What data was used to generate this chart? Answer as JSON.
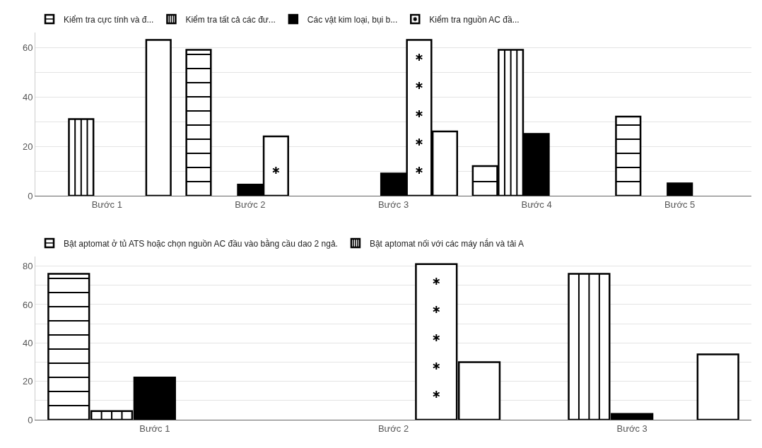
{
  "chart_data": [
    {
      "type": "bar",
      "categories": [
        "Bước 1",
        "Bước 2",
        "Bước 3",
        "Bước 4",
        "Bước 5"
      ],
      "series": [
        {
          "name": "Kiểm tra cực tính và đ...",
          "color": "#ffffff",
          "values": [
            null,
            59,
            null,
            12,
            32
          ]
        },
        {
          "name": "Kiểm tra tất cả các đư...",
          "color": "#ffffff",
          "values": [
            31,
            null,
            null,
            59,
            null
          ]
        },
        {
          "name": "Các vật kim loại, bụi b...",
          "color": "#000000",
          "values": [
            null,
            4.5,
            9,
            25,
            5
          ]
        },
        {
          "name": "Kiểm tra nguồn AC đầ...",
          "color": "#ffffff",
          "values": [
            null,
            24,
            63,
            null,
            null
          ]
        },
        {
          "color": "#ffffff",
          "values": [
            63,
            null,
            26,
            null,
            null
          ]
        }
      ],
      "ylim": [
        0,
        66
      ],
      "yticks": [
        0,
        {
          "value": 10,
          "label": null
        },
        20,
        {
          "value": 30,
          "label": null
        },
        40,
        {
          "value": 50,
          "label": null
        },
        60
      ],
      "grid": "y",
      "legend": "top"
    },
    {
      "type": "bar",
      "categories": [
        "Bước 1",
        "Bước 2",
        "Bước 3"
      ],
      "series": [
        {
          "name": "Bật aptomat ở tủ ATS hoặc chọn nguồn AC đầu vào bằng cầu dao 2 ngả.",
          "color": "#ffffff",
          "values": [
            76,
            null,
            null
          ]
        },
        {
          "name": "Bật aptomat nối với các máy nắn và tải A",
          "color": "#ffffff",
          "values": [
            4.5,
            null,
            76
          ]
        },
        {
          "color": "#000000",
          "values": [
            22,
            null,
            3
          ]
        },
        {
          "color": "#ffffff",
          "values": [
            null,
            81,
            null
          ]
        },
        {
          "color": "#ffffff",
          "values": [
            null,
            30,
            34
          ]
        }
      ],
      "ylim": [
        0,
        85
      ],
      "yticks": [
        0,
        {
          "value": 10,
          "label": null
        },
        20,
        {
          "value": 30,
          "label": null
        },
        40,
        {
          "value": 50,
          "label": null
        },
        60,
        {
          "value": 70,
          "label": null
        },
        80
      ],
      "grid": "y",
      "legend": "top"
    }
  ]
}
